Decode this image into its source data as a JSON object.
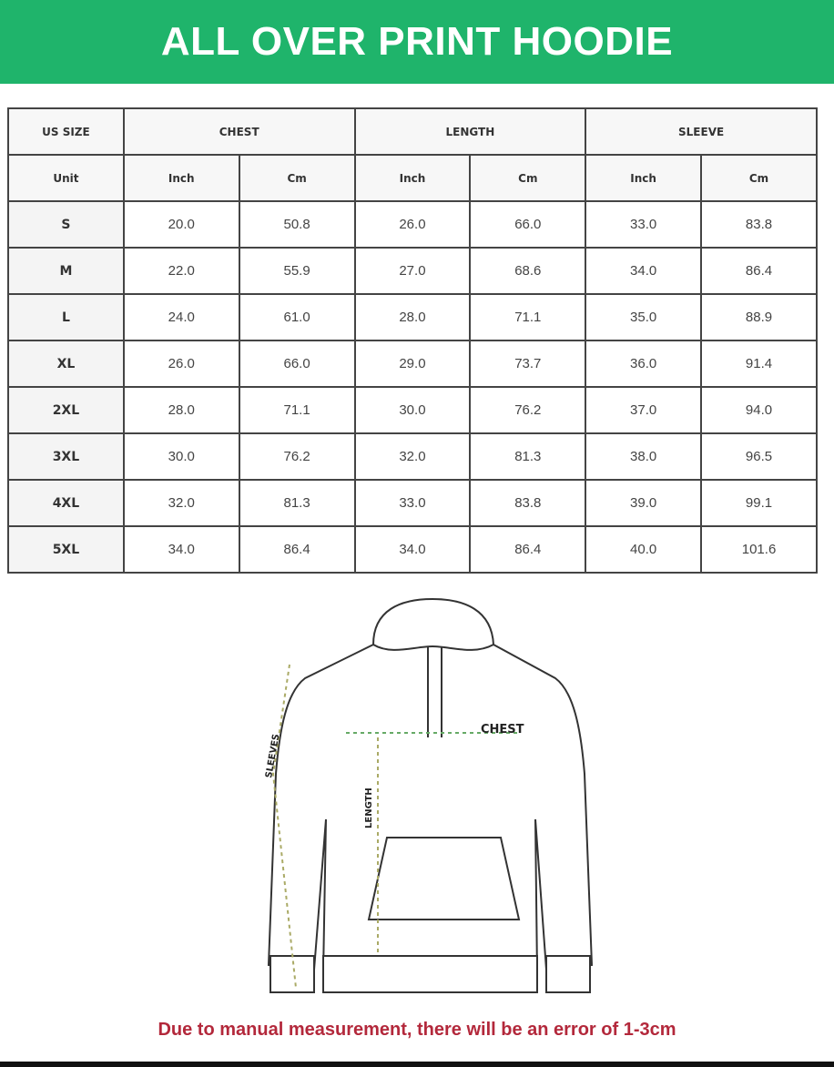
{
  "title": "ALL OVER PRINT HOODIE",
  "table": {
    "group_headers": [
      "US SIZE",
      "CHEST",
      "LENGTH",
      "SLEEVE"
    ],
    "unit_label": "Unit",
    "units": [
      "Inch",
      "Cm",
      "Inch",
      "Cm",
      "Inch",
      "Cm"
    ],
    "rows": [
      {
        "size": "S",
        "values": [
          "20.0",
          "50.8",
          "26.0",
          "66.0",
          "33.0",
          "83.8"
        ]
      },
      {
        "size": "M",
        "values": [
          "22.0",
          "55.9",
          "27.0",
          "68.6",
          "34.0",
          "86.4"
        ]
      },
      {
        "size": "L",
        "values": [
          "24.0",
          "61.0",
          "28.0",
          "71.1",
          "35.0",
          "88.9"
        ]
      },
      {
        "size": "XL",
        "values": [
          "26.0",
          "66.0",
          "29.0",
          "73.7",
          "36.0",
          "91.4"
        ]
      },
      {
        "size": "2XL",
        "values": [
          "28.0",
          "71.1",
          "30.0",
          "76.2",
          "37.0",
          "94.0"
        ]
      },
      {
        "size": "3XL",
        "values": [
          "30.0",
          "76.2",
          "32.0",
          "81.3",
          "38.0",
          "96.5"
        ]
      },
      {
        "size": "4XL",
        "values": [
          "32.0",
          "81.3",
          "33.0",
          "83.8",
          "39.0",
          "99.1"
        ]
      },
      {
        "size": "5XL",
        "values": [
          "34.0",
          "86.4",
          "34.0",
          "86.4",
          "40.0",
          "101.6"
        ]
      }
    ]
  },
  "diagram": {
    "chest_label": "CHEST",
    "length_label": "LENGTH",
    "sleeves_label": "SLEEVES"
  },
  "note": "Due to manual measurement, there will be an error of 1-3cm",
  "colors": {
    "banner": "#1fb46b",
    "note": "#b3283b"
  }
}
